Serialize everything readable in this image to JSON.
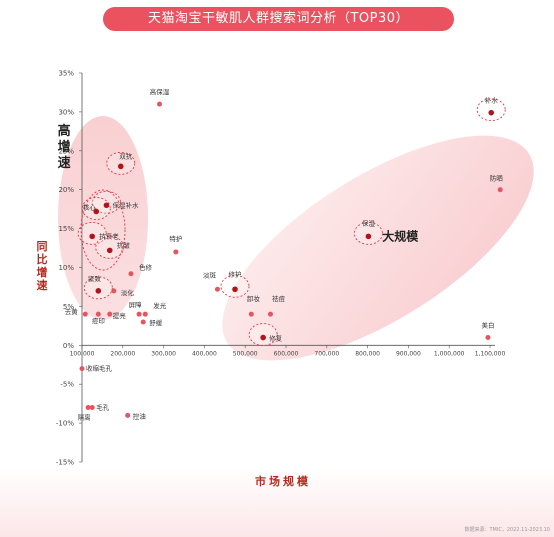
{
  "title": "天猫淘宝干敏肌人群搜索词分析（TOP30）",
  "source_note": "数据来源：TMIC，2022.11-2023.10",
  "colors": {
    "accent": "#e9525e",
    "dark_point": "#b3131c",
    "light_point": "#e5545f",
    "axis_label": "#b42a1f",
    "cluster_fill": "#f7c1c3",
    "dashed_ring": "#e03541"
  },
  "chart_data": {
    "type": "scatter",
    "xlabel": "市场规模",
    "ylabel": "同比增速",
    "xlim": [
      100000,
      1100000
    ],
    "ylim": [
      -15,
      35
    ],
    "x_ticks": [
      "100,000",
      "200,000",
      "300,000",
      "400,000",
      "500,000",
      "600,000",
      "700,000",
      "800,000",
      "900,000",
      "1,000,000",
      "1,100,000"
    ],
    "y_ticks": [
      "35%",
      "30%",
      "25%",
      "20%",
      "15%",
      "10%",
      "5%",
      "0%",
      "-5%",
      "-10%",
      "-15%"
    ],
    "x_tick_values": [
      100000,
      200000,
      300000,
      400000,
      500000,
      600000,
      700000,
      800000,
      900000,
      1000000,
      1100000
    ],
    "y_tick_values": [
      35,
      30,
      25,
      20,
      15,
      10,
      5,
      0,
      -5,
      -10,
      -15
    ],
    "clusters": [
      {
        "label": "高增速",
        "label_x": 110000,
        "label_y": 27
      },
      {
        "label": "大规模",
        "label_x": 880000,
        "label_y": 14
      }
    ],
    "points": [
      {
        "label": "补水",
        "x": 1103000,
        "y": 29.9,
        "highlight": true,
        "dark": true
      },
      {
        "label": "防晒",
        "x": 1125000,
        "y": 20.0,
        "highlight": false,
        "dark": false
      },
      {
        "label": "保湿",
        "x": 802000,
        "y": 14.0,
        "highlight": true,
        "dark": true
      },
      {
        "label": "修护",
        "x": 475000,
        "y": 7.2,
        "highlight": true,
        "dark": true
      },
      {
        "label": "淡斑",
        "x": 432000,
        "y": 7.2,
        "highlight": false,
        "dark": false
      },
      {
        "label": "卸妆",
        "x": 515000,
        "y": 4.0,
        "highlight": false,
        "dark": false
      },
      {
        "label": "祛痘",
        "x": 562000,
        "y": 4.0,
        "highlight": false,
        "dark": false
      },
      {
        "label": "修复",
        "x": 544000,
        "y": 1.0,
        "highlight": true,
        "dark": true
      },
      {
        "label": "美白",
        "x": 1095000,
        "y": 1.0,
        "highlight": false,
        "dark": false
      },
      {
        "label": "高保湿",
        "x": 290000,
        "y": 31.0,
        "highlight": false,
        "dark": false
      },
      {
        "label": "特护",
        "x": 330000,
        "y": 12.0,
        "highlight": false,
        "dark": false
      },
      {
        "label": "色修",
        "x": 220000,
        "y": 9.2,
        "highlight": false,
        "dark": false
      },
      {
        "label": "双抗",
        "x": 195000,
        "y": 23.0,
        "highlight": true,
        "dark": true
      },
      {
        "label": "保湿补水",
        "x": 160000,
        "y": 18.0,
        "highlight": true,
        "dark": true
      },
      {
        "label": "核心",
        "x": 135000,
        "y": 17.2,
        "highlight": true,
        "dark": true
      },
      {
        "label": "抗衰老",
        "x": 125000,
        "y": 14.0,
        "highlight": true,
        "dark": true
      },
      {
        "label": "抗皱",
        "x": 168000,
        "y": 12.2,
        "highlight": true,
        "dark": true
      },
      {
        "label": "紧致",
        "x": 140000,
        "y": 7.0,
        "highlight": true,
        "dark": true
      },
      {
        "label": "淡化",
        "x": 178000,
        "y": 7.0,
        "highlight": false,
        "dark": false
      },
      {
        "label": "去黄",
        "x": 108000,
        "y": 4.0,
        "highlight": false,
        "dark": false
      },
      {
        "label": "痘印",
        "x": 140000,
        "y": 4.0,
        "highlight": false,
        "dark": false
      },
      {
        "label": "提亮",
        "x": 168000,
        "y": 4.0,
        "highlight": false,
        "dark": false
      },
      {
        "label": "屏障",
        "x": 240000,
        "y": 4.0,
        "highlight": false,
        "dark": false
      },
      {
        "label": "发光",
        "x": 255000,
        "y": 4.0,
        "highlight": false,
        "dark": false
      },
      {
        "label": "舒缓",
        "x": 250000,
        "y": 3.0,
        "highlight": false,
        "dark": false
      },
      {
        "label": "收缩毛孔",
        "x": 100000,
        "y": -3.0,
        "highlight": false,
        "dark": false
      },
      {
        "label": "毛孔",
        "x": 125000,
        "y": -8.0,
        "highlight": false,
        "dark": false
      },
      {
        "label": "隔离",
        "x": 115000,
        "y": -8.0,
        "highlight": false,
        "dark": false
      },
      {
        "label": "控油",
        "x": 212000,
        "y": -9.0,
        "highlight": false,
        "dark": false
      }
    ]
  }
}
